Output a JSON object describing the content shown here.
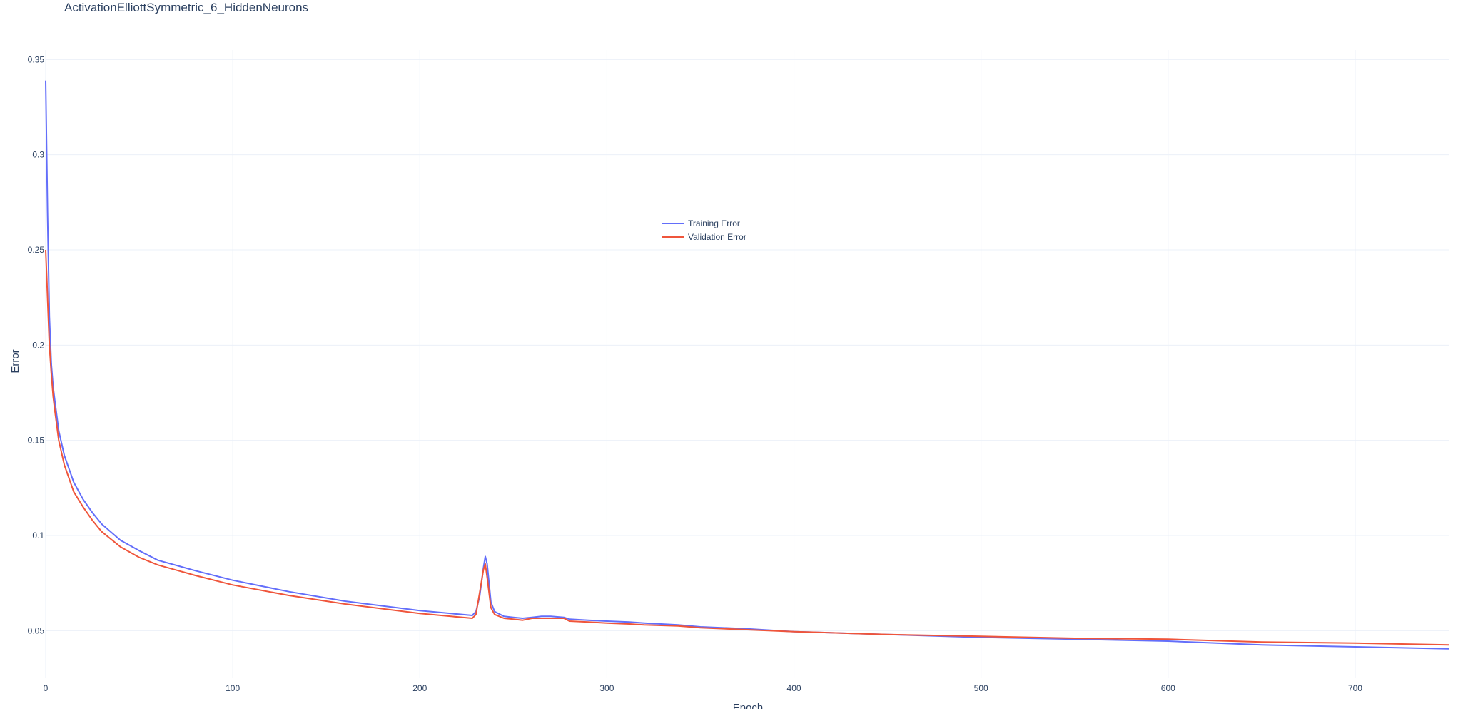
{
  "chart_data": {
    "type": "line",
    "title": "ActivationElliottSymmetric_6_HiddenNeurons",
    "xlabel": "Epoch",
    "ylabel": "Error",
    "xlim": [
      0,
      750
    ],
    "ylim": [
      0.025,
      0.355
    ],
    "x_ticks": [
      0,
      100,
      200,
      300,
      400,
      500,
      600,
      700
    ],
    "y_ticks": [
      0.05,
      0.1,
      0.15,
      0.2,
      0.25,
      0.3,
      0.35
    ],
    "x_tick_labels": [
      "0",
      "100",
      "200",
      "300",
      "400",
      "500",
      "600",
      "700"
    ],
    "y_tick_labels": [
      "0.05",
      "0.1",
      "0.15",
      "0.2",
      "0.25",
      "0.3",
      "0.35"
    ],
    "grid": true,
    "legend_position": "center",
    "series": [
      {
        "name": "Training Error",
        "color": "#636efa",
        "x": [
          0,
          1,
          2,
          3,
          4,
          5,
          7,
          10,
          15,
          20,
          25,
          30,
          40,
          50,
          60,
          80,
          100,
          130,
          160,
          200,
          228,
          230,
          232,
          234,
          235,
          236,
          238,
          240,
          245,
          250,
          255,
          260,
          265,
          270,
          277,
          280,
          290,
          300,
          312,
          320,
          338,
          350,
          375,
          400,
          450,
          500,
          550,
          600,
          650,
          700,
          750
        ],
        "y": [
          0.339,
          0.27,
          0.215,
          0.19,
          0.178,
          0.17,
          0.155,
          0.142,
          0.128,
          0.119,
          0.112,
          0.106,
          0.0975,
          0.092,
          0.087,
          0.0815,
          0.0765,
          0.0705,
          0.0655,
          0.0605,
          0.058,
          0.06,
          0.068,
          0.083,
          0.089,
          0.085,
          0.065,
          0.06,
          0.0575,
          0.057,
          0.0565,
          0.057,
          0.0575,
          0.0575,
          0.057,
          0.056,
          0.0555,
          0.055,
          0.0545,
          0.054,
          0.053,
          0.052,
          0.051,
          0.0495,
          0.048,
          0.0465,
          0.0455,
          0.0445,
          0.0425,
          0.0415,
          0.0405
        ]
      },
      {
        "name": "Validation Error",
        "color": "#ef553b",
        "x": [
          0,
          1,
          2,
          3,
          4,
          5,
          7,
          10,
          15,
          20,
          25,
          30,
          40,
          50,
          60,
          80,
          100,
          130,
          160,
          200,
          228,
          230,
          232,
          234,
          235,
          236,
          238,
          240,
          245,
          250,
          255,
          260,
          265,
          270,
          277,
          280,
          290,
          300,
          312,
          320,
          338,
          350,
          375,
          400,
          450,
          500,
          550,
          600,
          650,
          700,
          750
        ],
        "y": [
          0.25,
          0.225,
          0.2,
          0.185,
          0.173,
          0.165,
          0.15,
          0.137,
          0.123,
          0.115,
          0.108,
          0.102,
          0.094,
          0.0885,
          0.0845,
          0.079,
          0.074,
          0.0685,
          0.064,
          0.059,
          0.0565,
          0.0585,
          0.07,
          0.082,
          0.085,
          0.078,
          0.062,
          0.0585,
          0.0565,
          0.056,
          0.0555,
          0.0565,
          0.0565,
          0.0565,
          0.0565,
          0.055,
          0.0545,
          0.054,
          0.0535,
          0.053,
          0.0525,
          0.0515,
          0.0505,
          0.0495,
          0.048,
          0.047,
          0.046,
          0.0455,
          0.044,
          0.0435,
          0.0425
        ]
      }
    ]
  }
}
